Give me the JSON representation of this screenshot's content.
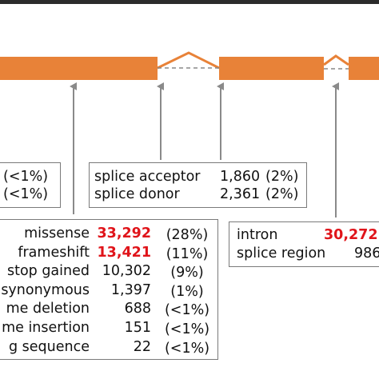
{
  "colors": {
    "exon": "#E88238",
    "arrow": "#8a8a8a",
    "box_border": "#7a7a7a",
    "highlight": "#E0141A"
  },
  "left_box": {
    "rows": [
      {
        "pct": "(<1%)"
      },
      {
        "pct": "(<1%)"
      }
    ]
  },
  "splice_box": {
    "rows": [
      {
        "label": "splice acceptor",
        "count": "1,860",
        "pct": "(2%)"
      },
      {
        "label": "splice donor",
        "count": "2,361",
        "pct": "(2%)"
      }
    ]
  },
  "coding_box": {
    "rows": [
      {
        "label": "missense",
        "count": "33,292",
        "pct": "(28%)",
        "highlight": true
      },
      {
        "label": "frameshift",
        "count": "13,421",
        "pct": "(11%)",
        "highlight": true
      },
      {
        "label": "stop gained",
        "count": "10,302",
        "pct": "(9%)"
      },
      {
        "label": "synonymous",
        "count": "1,397",
        "pct": "(1%)"
      },
      {
        "label": "me deletion",
        "count": "688",
        "pct": "(<1%)"
      },
      {
        "label": "me insertion",
        "count": "151",
        "pct": "(<1%)"
      },
      {
        "label": "g sequence",
        "count": "22",
        "pct": "(<1%)"
      }
    ]
  },
  "intron_box": {
    "rows": [
      {
        "label": "intron",
        "count": "30,272",
        "highlight": true
      },
      {
        "label": "splice region",
        "count": "986"
      }
    ]
  }
}
